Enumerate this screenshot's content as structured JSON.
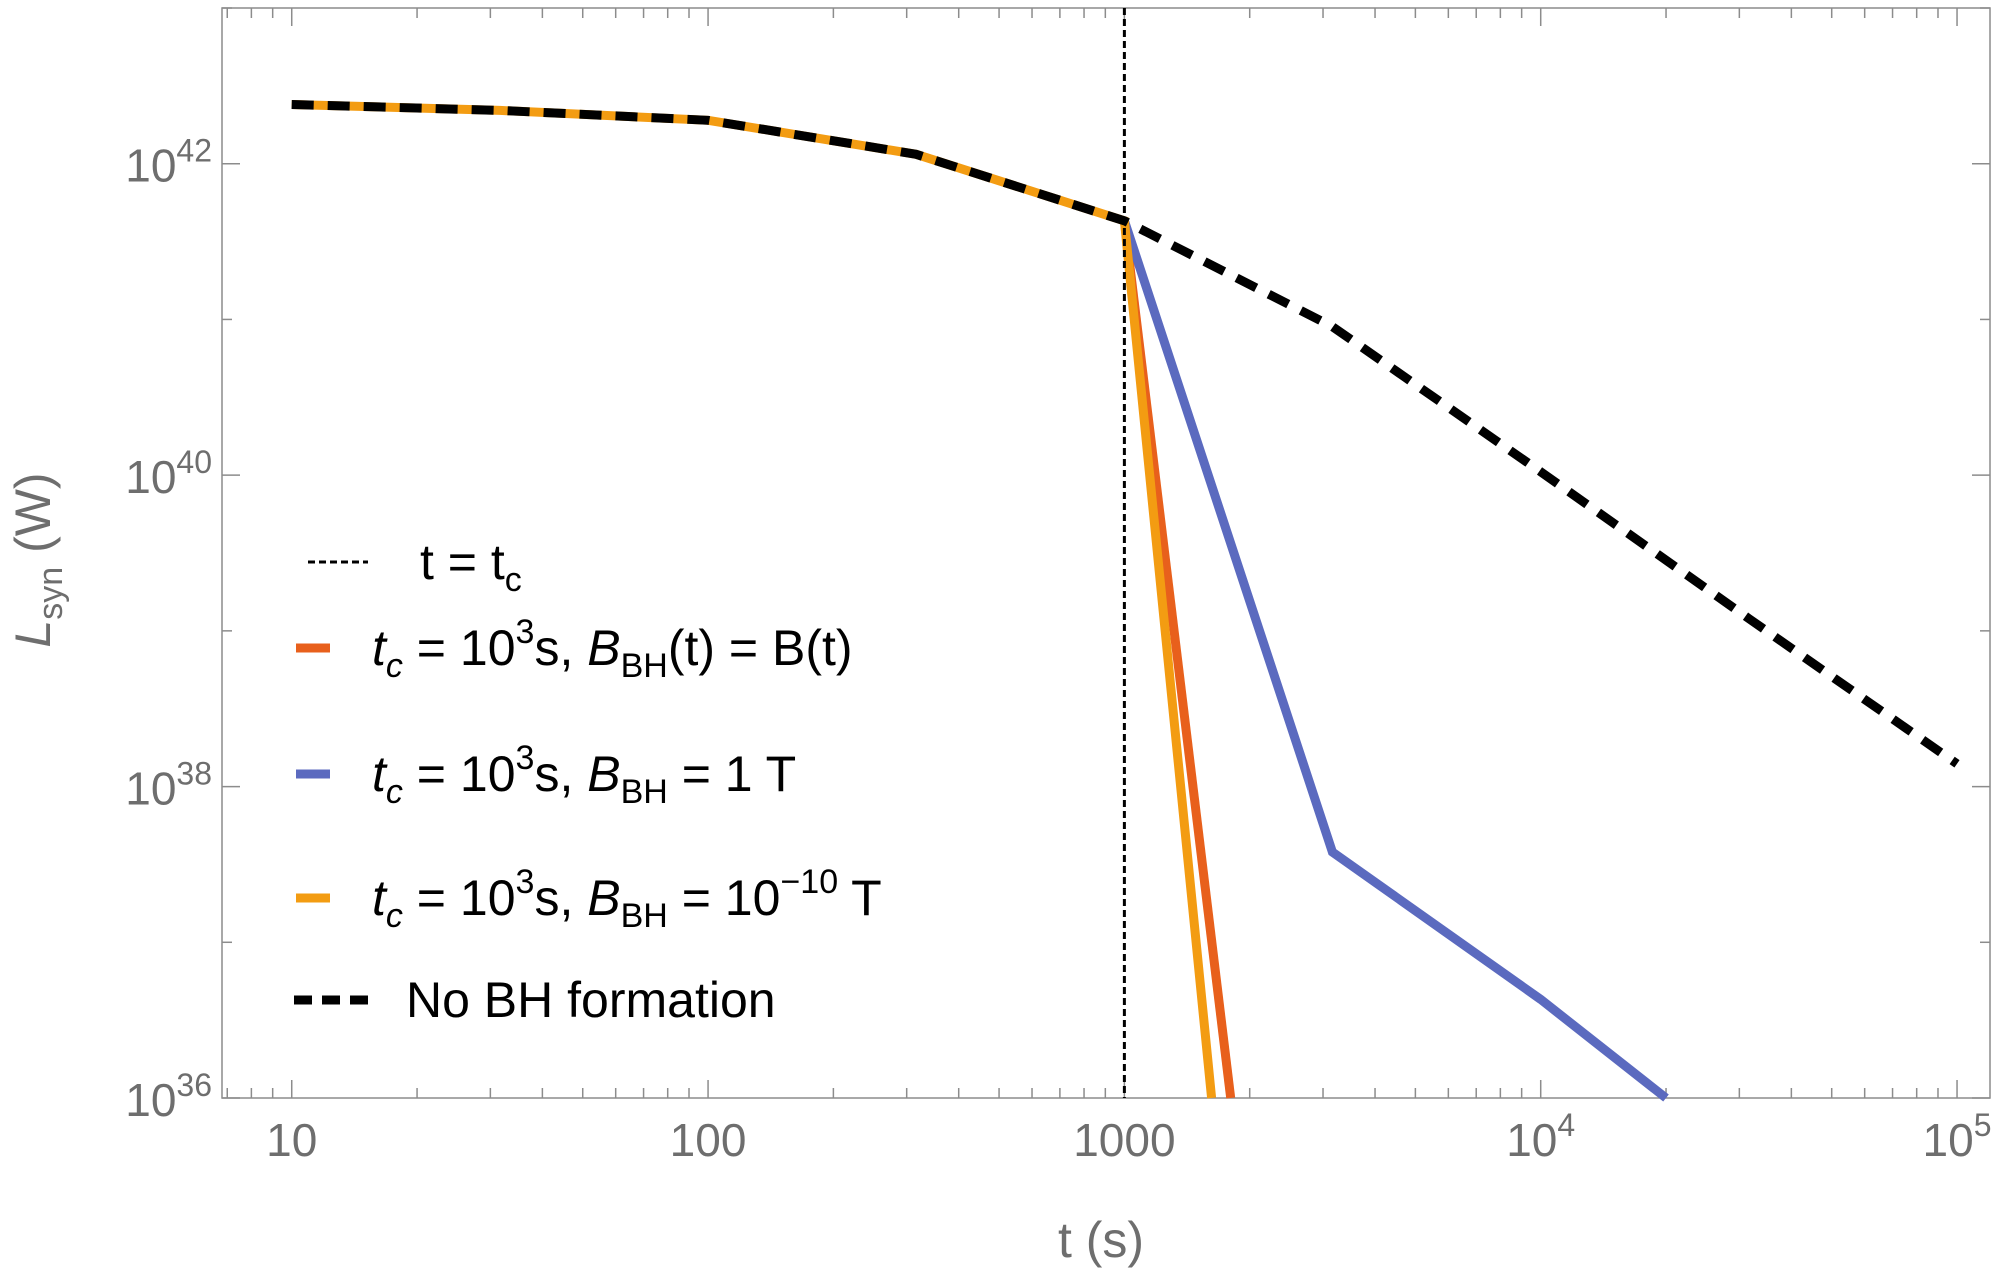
{
  "chart_data": {
    "type": "line",
    "title": "",
    "xlabel": "t  (s)",
    "ylabel": {
      "main": "L",
      "sub": "syn",
      "unit": " (W)"
    },
    "x_scale": "log",
    "y_scale": "log",
    "xlim": [
      6.8,
      120000
    ],
    "ylim": [
      1e+36,
      1e+43
    ],
    "grid": false,
    "legend_position": "center-left",
    "x_ticks": [
      {
        "value": 10,
        "label": "10"
      },
      {
        "value": 100,
        "label": "100"
      },
      {
        "value": 1000,
        "label": "1000"
      },
      {
        "value": 10000,
        "label": "10",
        "sup": "4"
      },
      {
        "value": 100000,
        "label": "10",
        "sup": "5"
      }
    ],
    "y_ticks": [
      {
        "value": 1e+36,
        "label": "10",
        "sup": "36"
      },
      {
        "value": 1e+38,
        "label": "10",
        "sup": "38"
      },
      {
        "value": 1e+40,
        "label": "10",
        "sup": "40"
      },
      {
        "value": 1e+42,
        "label": "10",
        "sup": "42"
      }
    ],
    "vline": {
      "x": 1000,
      "color": "#000000",
      "label": "t = t",
      "label_sub": "c"
    },
    "series": [
      {
        "name": "No BH formation",
        "color": "#000000",
        "style": "dashed",
        "x": [
          10,
          31.6,
          100,
          316,
          1000,
          3160,
          10000,
          31600,
          100000
        ],
        "y": [
          2.4e+42,
          2.2e+42,
          1.9e+42,
          1.15e+42,
          4.3e+41,
          9e+40,
          1.05e+40,
          1.2e+39,
          1.4e+38
        ]
      },
      {
        "name": "t_c = 10^3s, B_BH(t) = B(t)",
        "color": "#e8601c",
        "style": "solid",
        "x": [
          1000,
          1800
        ],
        "y": [
          4.3e+41,
          1e+36
        ]
      },
      {
        "name": "t_c = 10^3s, B_BH = 1 T",
        "color": "#5b6abf",
        "style": "solid",
        "x": [
          1000,
          3160,
          10000,
          20000
        ],
        "y": [
          4.3e+41,
          3.8e+37,
          4.3e+36,
          1e+36
        ]
      },
      {
        "name": "t_c = 10^3s, B_BH = 10^-10 T",
        "color": "#f39c12",
        "style": "solid",
        "x": [
          10,
          31.6,
          100,
          316,
          1000,
          1620
        ],
        "y": [
          2.4e+42,
          2.2e+42,
          1.9e+42,
          1.15e+42,
          4.3e+41,
          1e+36
        ]
      }
    ],
    "legend": [
      {
        "kind": "vline",
        "color": "#000000",
        "text": "t = t",
        "sub": "c"
      },
      {
        "kind": "solid",
        "color": "#e8601c",
        "parts": [
          "t",
          "c",
          " = 10",
          "3",
          "s, ",
          "B",
          "BH",
          "(t) = B(t)"
        ]
      },
      {
        "kind": "solid",
        "color": "#5b6abf",
        "parts": [
          "t",
          "c",
          " = 10",
          "3",
          "s, ",
          "B",
          "BH",
          " = 1 T"
        ]
      },
      {
        "kind": "solid",
        "color": "#f39c12",
        "parts": [
          "t",
          "c",
          " = 10",
          "3",
          "s, ",
          "B",
          "BH",
          " = 10",
          "−10",
          " T"
        ]
      },
      {
        "kind": "dashed",
        "color": "#000000",
        "text": "No BH formation"
      }
    ]
  }
}
